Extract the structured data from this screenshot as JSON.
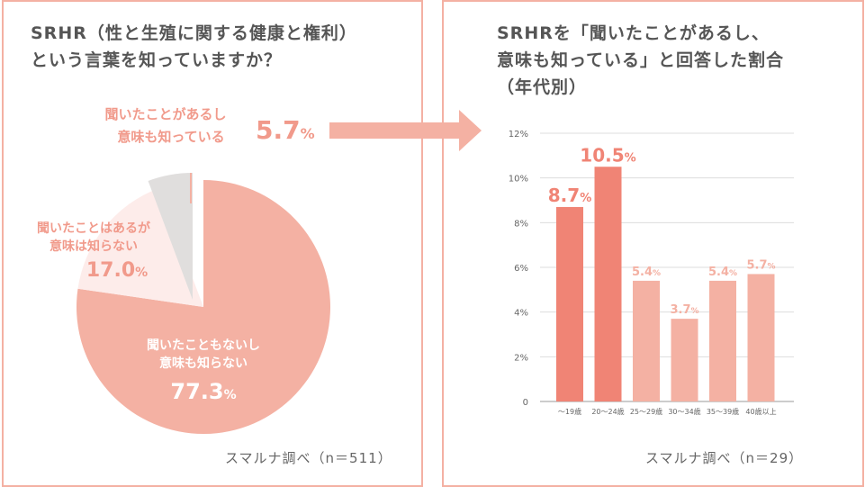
{
  "left": {
    "title_line1": "SRHR（性と生殖に関する健康と権利）",
    "title_line2": "という言葉を知っていますか？",
    "source": "スマルナ調べ（n＝511）",
    "chart_data": {
      "type": "pie",
      "title": "SRHR（性と生殖に関する健康と権利）という言葉を知っていますか？",
      "slices": [
        {
          "label_line1": "聞いたこともないし",
          "label_line2": "意味も知らない",
          "value": 77.3,
          "value_text": "77.3",
          "color": "#f4b1a3"
        },
        {
          "label_line1": "聞いたことはあるが",
          "label_line2": "意味は知らない",
          "value": 17.0,
          "value_text": "17.0",
          "color": "#fdecea"
        },
        {
          "label_line1": "聞いたことがあるし",
          "label_line2": "意味も知っている",
          "value": 5.7,
          "value_text": "5.7",
          "color": "#e0dedd"
        }
      ],
      "unit": "%"
    }
  },
  "right": {
    "title_line1": "SRHRを「聞いたことがあるし、",
    "title_line2": "意味も知っている」と回答した割合",
    "title_line3": "（年代別）",
    "source": "スマルナ調べ（n＝29）",
    "chart_data": {
      "type": "bar",
      "title": "SRHRを「聞いたことがあるし、意味も知っている」と回答した割合（年代別）",
      "categories": [
        "〜19歳",
        "20〜24歳",
        "25〜29歳",
        "30〜34歳",
        "35〜39歳",
        "40歳以上"
      ],
      "values": [
        8.7,
        10.5,
        5.4,
        3.7,
        5.4,
        5.7
      ],
      "value_labels": [
        "8.7",
        "10.5",
        "5.4",
        "3.7",
        "5.4",
        "5.7"
      ],
      "unit": "%",
      "yticks": [
        "0",
        "2%",
        "4%",
        "6%",
        "8%",
        "10%",
        "12%"
      ],
      "ylim": [
        0,
        12
      ],
      "highlight_color": "#f08475",
      "base_color": "#f4b1a3",
      "highlight_indices": [
        0,
        1
      ]
    }
  },
  "arrow_color": "#f4b1a3"
}
